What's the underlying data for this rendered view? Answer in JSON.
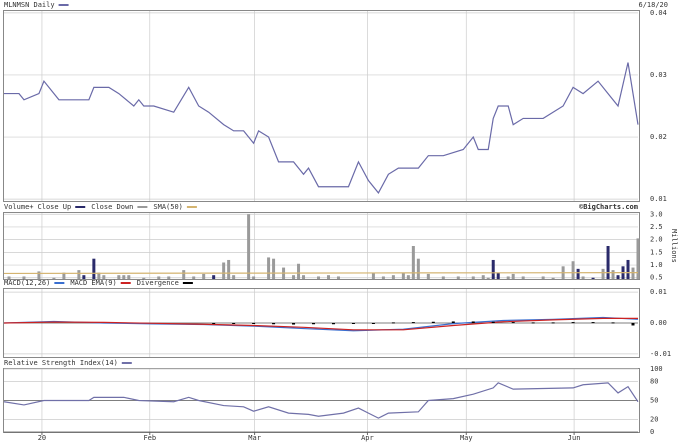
{
  "chart_data": [
    {
      "type": "line",
      "date": "6/18/20",
      "xlim": [
        0,
        127
      ],
      "ylim": [
        0.0097,
        0.0403
      ],
      "yticks": [
        0.04,
        0.03,
        0.02,
        0.01
      ],
      "grid": true,
      "series": [
        {
          "name": "MLNMSN Daily",
          "color": "#6a6aa8",
          "x": [
            0,
            3,
            4,
            7,
            8,
            11,
            17,
            18,
            21,
            23,
            26,
            27,
            28,
            30,
            34,
            37,
            39,
            41,
            44,
            46,
            48,
            50,
            51,
            53,
            55,
            58,
            60,
            61,
            63,
            69,
            71,
            73,
            75,
            77,
            79,
            83,
            85,
            88,
            92,
            94,
            95,
            97,
            98,
            99,
            101,
            102,
            104,
            108,
            112,
            114,
            116,
            119,
            121,
            123,
            125,
            127
          ],
          "values": [
            0.027,
            0.027,
            0.026,
            0.027,
            0.029,
            0.026,
            0.026,
            0.028,
            0.028,
            0.027,
            0.025,
            0.026,
            0.025,
            0.025,
            0.024,
            0.028,
            0.025,
            0.024,
            0.022,
            0.021,
            0.021,
            0.019,
            0.021,
            0.02,
            0.016,
            0.016,
            0.014,
            0.015,
            0.012,
            0.012,
            0.016,
            0.013,
            0.011,
            0.014,
            0.015,
            0.015,
            0.017,
            0.017,
            0.018,
            0.02,
            0.018,
            0.018,
            0.023,
            0.025,
            0.025,
            0.022,
            0.023,
            0.023,
            0.025,
            0.028,
            0.027,
            0.029,
            0.027,
            0.025,
            0.032,
            0.022
          ]
        }
      ]
    },
    {
      "type": "bar",
      "title": "Volume+",
      "unit": "Millions",
      "source": "©BigCharts.com",
      "xlim": [
        0,
        127
      ],
      "ylim": [
        0.45,
        3.05
      ],
      "yticks": [
        {
          "value": 3,
          "label": "3.0"
        },
        2.5,
        {
          "value": 2,
          "label": "2.0"
        },
        1.5,
        {
          "value": 1,
          "label": "1.0"
        },
        0.5
      ],
      "grid": true,
      "series": [
        {
          "name": "Close Up",
          "color": "#2a2a6a",
          "x": [
            16,
            18,
            42,
            98,
            99,
            115,
            118,
            121,
            123,
            124,
            125
          ],
          "values": [
            0.6,
            1.25,
            0.6,
            1.2,
            0.7,
            0.85,
            0.5,
            1.75,
            0.6,
            0.95,
            1.2
          ]
        },
        {
          "name": "Close Down",
          "color": "#9a9a9a",
          "x": [
            1,
            4,
            7,
            10,
            12,
            15,
            19,
            20,
            23,
            24,
            25,
            28,
            31,
            33,
            36,
            38,
            40,
            44,
            45,
            46,
            49,
            50,
            53,
            54,
            56,
            58,
            59,
            60,
            63,
            65,
            67,
            74,
            76,
            78,
            80,
            81,
            82,
            83,
            85,
            88,
            91,
            94,
            96,
            97,
            101,
            102,
            104,
            108,
            110,
            112,
            114,
            116,
            120,
            122,
            126,
            127
          ],
          "values": [
            0.55,
            0.55,
            0.75,
            0.5,
            0.7,
            0.8,
            0.7,
            0.6,
            0.6,
            0.6,
            0.6,
            0.5,
            0.55,
            0.55,
            0.8,
            0.55,
            0.65,
            1.1,
            1.2,
            0.6,
            3.0,
            0.55,
            1.3,
            1.25,
            0.9,
            0.6,
            1.05,
            0.6,
            0.55,
            0.6,
            0.55,
            0.7,
            0.55,
            0.6,
            0.7,
            0.6,
            1.75,
            1.25,
            0.65,
            0.55,
            0.55,
            0.55,
            0.6,
            0.5,
            0.55,
            0.65,
            0.55,
            0.55,
            0.5,
            0.95,
            1.15,
            0.55,
            0.85,
            0.8,
            0.9,
            2.05
          ]
        },
        {
          "name": "SMA(50)",
          "type": "line",
          "color": "#d4b470",
          "x": [
            0,
            40,
            80,
            127
          ],
          "values": [
            0.67,
            0.68,
            0.69,
            0.7
          ]
        }
      ]
    },
    {
      "type": "line",
      "xlim": [
        0,
        127
      ],
      "ylim": [
        -0.011,
        0.011
      ],
      "yticks": [
        0.01,
        {
          "value": 0,
          "label": "0.00"
        },
        -0.01
      ],
      "grid": true,
      "series": [
        {
          "name": "MACD(12,26)",
          "color": "#3a6fd0",
          "x": [
            0,
            10,
            20,
            30,
            40,
            50,
            60,
            70,
            80,
            90,
            100,
            110,
            120,
            127
          ],
          "values": [
            0.0,
            0.0005,
            0.0,
            -0.0003,
            -0.0005,
            -0.001,
            -0.0018,
            -0.0025,
            -0.002,
            -0.0002,
            0.0008,
            0.0012,
            0.0018,
            0.0012
          ]
        },
        {
          "name": "MACD EMA(9)",
          "color": "#cc2222",
          "x": [
            0,
            10,
            20,
            30,
            40,
            50,
            60,
            70,
            80,
            90,
            100,
            110,
            120,
            127
          ],
          "values": [
            0.0,
            0.0003,
            0.0002,
            -0.0001,
            -0.0004,
            -0.0008,
            -0.0014,
            -0.0022,
            -0.0022,
            -0.0008,
            0.0004,
            0.001,
            0.0015,
            0.0015
          ]
        },
        {
          "name": "Divergence",
          "type": "bar",
          "color": "#000000",
          "x": [
            42,
            46,
            50,
            54,
            58,
            62,
            66,
            70,
            74,
            78,
            82,
            86,
            90,
            94,
            98,
            102,
            106,
            110,
            114,
            118,
            122,
            126
          ],
          "values": [
            -0.0002,
            -0.0003,
            -0.0003,
            -0.0004,
            -0.0005,
            -0.0004,
            -0.0004,
            -0.0003,
            -0.0001,
            0.0002,
            0.0003,
            0.0004,
            0.0005,
            0.0005,
            0.0004,
            0.0003,
            0.0002,
            0.0002,
            0.0003,
            0.0003,
            0.0002,
            -0.0008
          ]
        }
      ]
    },
    {
      "type": "line",
      "xlim": [
        0,
        127
      ],
      "ylim": [
        0,
        100
      ],
      "yticks": [
        100,
        80,
        50,
        20,
        0
      ],
      "grid": true,
      "xticks": [
        {
          "value": 7.6,
          "label": "20"
        },
        {
          "value": 29.2,
          "label": "Feb"
        },
        {
          "value": 50.2,
          "label": "Mar"
        },
        {
          "value": 72.8,
          "label": "Apr"
        },
        {
          "value": 92.6,
          "label": "May"
        },
        {
          "value": 114.2,
          "label": "Jun"
        }
      ],
      "series": [
        {
          "name": "Relative Strength Index(14)",
          "color": "#7070a8",
          "x": [
            0,
            4,
            8,
            17,
            18,
            24,
            27,
            34,
            37,
            39,
            44,
            48,
            50,
            53,
            57,
            61,
            63,
            66,
            68,
            71,
            73,
            75,
            77,
            83,
            85,
            90,
            94,
            98,
            99,
            102,
            114,
            116,
            121,
            123,
            125,
            127
          ],
          "values": [
            48,
            43,
            50,
            50,
            55,
            55,
            50,
            48,
            55,
            50,
            42,
            40,
            33,
            40,
            30,
            28,
            25,
            28,
            30,
            38,
            30,
            22,
            30,
            32,
            50,
            53,
            60,
            70,
            78,
            68,
            70,
            75,
            78,
            62,
            72,
            48
          ]
        }
      ]
    }
  ]
}
